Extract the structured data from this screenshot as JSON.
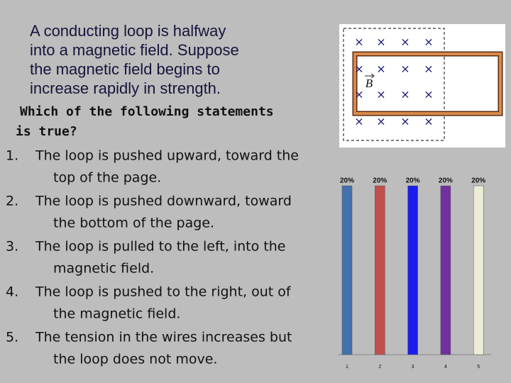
{
  "question": {
    "title_lines": [
      "A conducting loop is halfway",
      "into a magnetic field. Suppose",
      "the magnetic field begins to",
      "increase rapidly in strength."
    ],
    "prompt_lines": [
      "Which of the following statements",
      "is true?"
    ],
    "options": [
      {
        "number": "1.",
        "lines": [
          "The loop is pushed upward, toward the",
          "top of the page."
        ]
      },
      {
        "number": "2.",
        "lines": [
          "The loop is pushed downward, toward",
          "the bottom of the page."
        ]
      },
      {
        "number": "3.",
        "lines": [
          "The loop is pulled to the left, into the",
          "magnetic field."
        ]
      },
      {
        "number": "4.",
        "lines": [
          "The loop is pushed to the right, out of",
          "the magnetic field."
        ]
      },
      {
        "number": "5.",
        "lines": [
          "The tension in the wires increases but",
          "the loop does not move."
        ]
      }
    ]
  },
  "diagram": {
    "symbol": "×",
    "field_label": "B"
  },
  "chart_data": {
    "type": "bar",
    "categories": [
      "1",
      "2",
      "3",
      "4",
      "5"
    ],
    "values": [
      20,
      20,
      20,
      20,
      20
    ],
    "value_labels": [
      "20%",
      "20%",
      "20%",
      "20%",
      "20%"
    ],
    "colors": [
      "#4470ad",
      "#c0504d",
      "#1c1ced",
      "#7030a0",
      "#ecebd6"
    ]
  }
}
